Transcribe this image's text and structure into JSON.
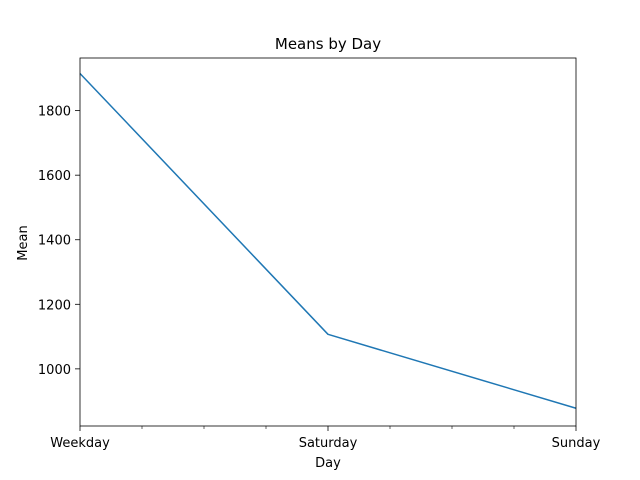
{
  "chart_data": {
    "type": "line",
    "title": "Means by Day",
    "xlabel": "Day",
    "ylabel": "Mean",
    "categories": [
      "Weekday",
      "Saturday",
      "Sunday"
    ],
    "series": [
      {
        "values": [
          1915,
          1107,
          878
        ],
        "color": "#1f77b4"
      }
    ],
    "ylim": [
      823,
      1963
    ],
    "yticks": [
      1000,
      1200,
      1400,
      1600,
      1800
    ],
    "minor_x_ticks_between": 3,
    "grid": false
  }
}
